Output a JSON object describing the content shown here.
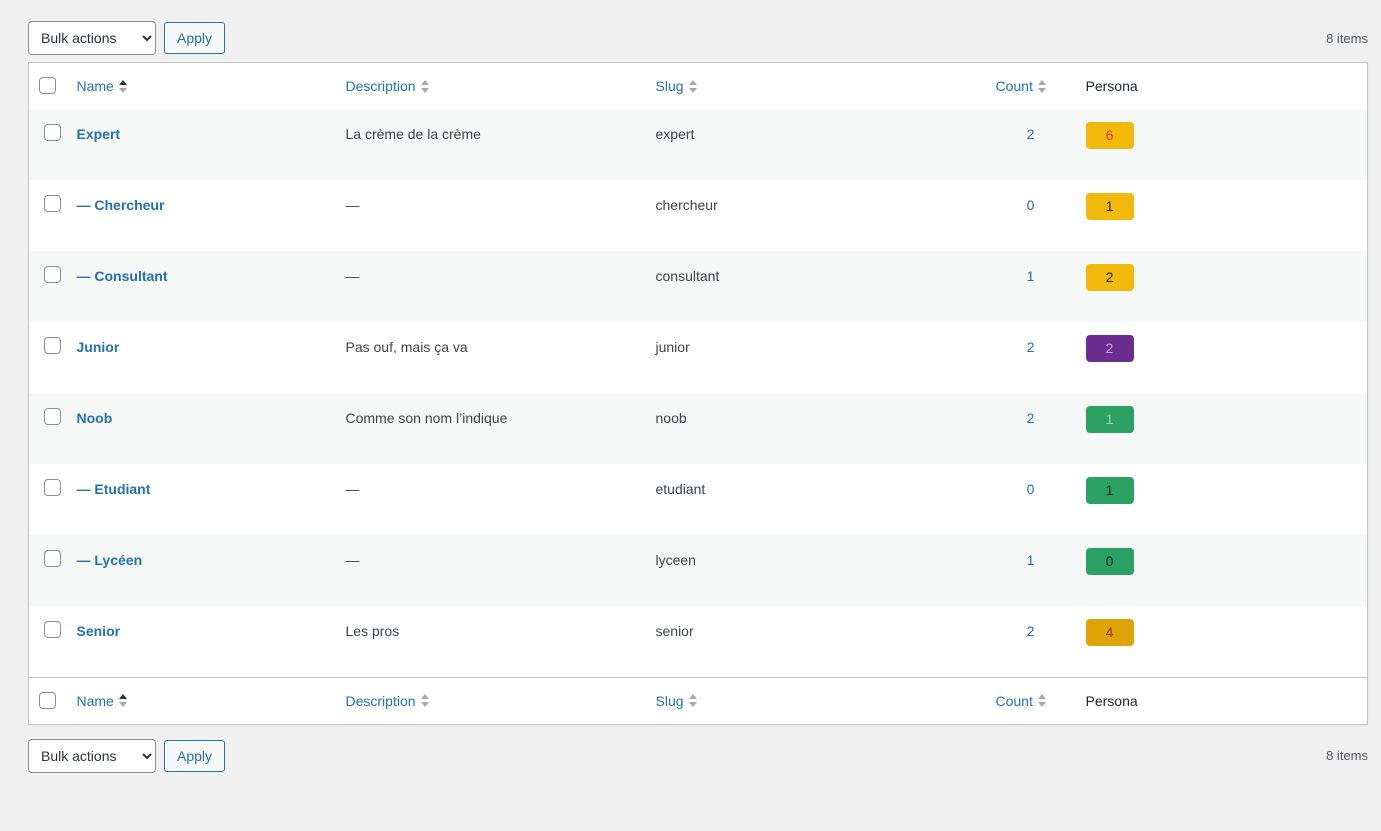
{
  "page": {
    "items_count": "8 items"
  },
  "toolbar": {
    "bulk_actions_label": "Bulk actions",
    "apply_label": "Apply"
  },
  "colors": {
    "link_accent": "#2271b1",
    "badge_yellow": "#f0b90b",
    "badge_amber": "#dda408",
    "badge_green": "#2ba263",
    "badge_purple": "#6c2d91"
  },
  "table": {
    "columns": [
      {
        "key": "name",
        "label": "Name",
        "sortable": true,
        "sorted": "asc"
      },
      {
        "key": "description",
        "label": "Description",
        "sortable": true,
        "sorted": null
      },
      {
        "key": "slug",
        "label": "Slug",
        "sortable": true,
        "sorted": null
      },
      {
        "key": "count",
        "label": "Count",
        "sortable": true,
        "sorted": null
      },
      {
        "key": "persona",
        "label": "Persona",
        "sortable": false,
        "sorted": null
      }
    ],
    "rows": [
      {
        "name": "Expert",
        "description": "La crème de la crème",
        "slug": "expert",
        "count": "2",
        "persona": {
          "value": "6",
          "bg": "#f0b90b",
          "fg": "#d63638"
        }
      },
      {
        "name": "— Chercheur",
        "description": "—",
        "slug": "chercheur",
        "count": "0",
        "persona": {
          "value": "1",
          "bg": "#f0b90b",
          "fg": "#1d2327"
        }
      },
      {
        "name": "— Consultant",
        "description": "—",
        "slug": "consultant",
        "count": "1",
        "persona": {
          "value": "2",
          "bg": "#f0b90b",
          "fg": "#1d2327"
        }
      },
      {
        "name": "Junior",
        "description": "Pas ouf, mais ça va",
        "slug": "junior",
        "count": "2",
        "persona": {
          "value": "2",
          "bg": "#6c2d91",
          "fg": "#cf9fd9"
        }
      },
      {
        "name": "Noob",
        "description": "Comme son nom l’indique",
        "slug": "noob",
        "count": "2",
        "persona": {
          "value": "1",
          "bg": "#2ba263",
          "fg": "#9ed8b5"
        }
      },
      {
        "name": "— Etudiant",
        "description": "—",
        "slug": "etudiant",
        "count": "0",
        "persona": {
          "value": "1",
          "bg": "#2ba263",
          "fg": "#1d2327"
        }
      },
      {
        "name": "— Lycéen",
        "description": "—",
        "slug": "lyceen",
        "count": "1",
        "persona": {
          "value": "0",
          "bg": "#2ba263",
          "fg": "#1d2327"
        }
      },
      {
        "name": "Senior",
        "description": "Les pros",
        "slug": "senior",
        "count": "2",
        "persona": {
          "value": "4",
          "bg": "#dda408",
          "fg": "#b32d2e"
        }
      }
    ]
  }
}
